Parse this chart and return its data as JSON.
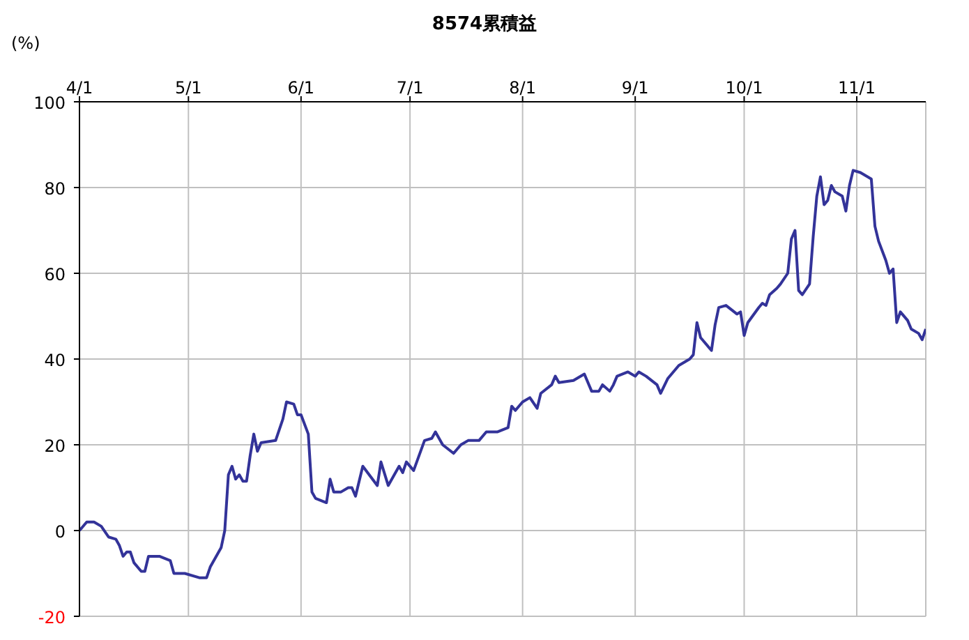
{
  "chart_data": {
    "type": "line",
    "title": "8574累積益",
    "ylabel": "(%)",
    "x": [
      "--04-01",
      "--04-03",
      "--04-05",
      "--04-07",
      "--04-09",
      "--04-11",
      "--04-12",
      "--04-13",
      "--04-14",
      "--04-15",
      "--04-16",
      "--04-18",
      "--04-19",
      "--04-20",
      "--04-23",
      "--04-26",
      "--04-27",
      "--04-30",
      "--05-04",
      "--05-06",
      "--05-07",
      "--05-10",
      "--05-11",
      "--05-12",
      "--05-13",
      "--05-14",
      "--05-15",
      "--05-16",
      "--05-17",
      "--05-18",
      "--05-19",
      "--05-20",
      "--05-21",
      "--05-25",
      "--05-27",
      "--05-28",
      "--05-30",
      "--05-31",
      "--06-01",
      "--06-03",
      "--06-04",
      "--06-05",
      "--06-08",
      "--06-09",
      "--06-10",
      "--06-12",
      "--06-14",
      "--06-15",
      "--06-16",
      "--06-18",
      "--06-22",
      "--06-23",
      "--06-25",
      "--06-28",
      "--06-29",
      "--06-30",
      "--07-02",
      "--07-05",
      "--07-07",
      "--07-08",
      "--07-10",
      "--07-13",
      "--07-15",
      "--07-17",
      "--07-20",
      "--07-22",
      "--07-25",
      "--07-28",
      "--07-29",
      "--07-30",
      "--08-01",
      "--08-03",
      "--08-05",
      "--08-06",
      "--08-09",
      "--08-10",
      "--08-11",
      "--08-15",
      "--08-18",
      "--08-20",
      "--08-22",
      "--08-23",
      "--08-25",
      "--08-26",
      "--08-27",
      "--08-30",
      "--09-01",
      "--09-02",
      "--09-04",
      "--09-07",
      "--09-08",
      "--09-10",
      "--09-13",
      "--09-16",
      "--09-17",
      "--09-18",
      "--09-19",
      "--09-22",
      "--09-23",
      "--09-24",
      "--09-26",
      "--09-29",
      "--09-30",
      "--10-01",
      "--10-02",
      "--10-05",
      "--10-06",
      "--10-07",
      "--10-08",
      "--10-10",
      "--10-11",
      "--10-13",
      "--10-14",
      "--10-15",
      "--10-16",
      "--10-17",
      "--10-19",
      "--10-20",
      "--10-21",
      "--10-22",
      "--10-23",
      "--10-24",
      "--10-25",
      "--10-26",
      "--10-28",
      "--10-29",
      "--10-30",
      "--10-31",
      "--11-02",
      "--11-05",
      "--11-06",
      "--11-07",
      "--11-09",
      "--11-10",
      "--11-11",
      "--11-12",
      "--11-13",
      "--11-15",
      "--11-16",
      "--11-18",
      "--11-19",
      "--11-20"
    ],
    "series": [
      {
        "color": "#333399",
        "values": [
          0,
          2,
          2,
          1,
          -1.5,
          -2,
          -3.5,
          -6,
          -5,
          -5,
          -7.5,
          -9.5,
          -9.5,
          -6,
          -6,
          -7,
          -10,
          -10,
          -11,
          -11,
          -8.5,
          -4,
          0,
          13,
          15,
          12,
          13,
          11.5,
          11.5,
          17.5,
          22.5,
          18.5,
          20.5,
          21,
          26,
          30,
          29.5,
          27,
          27,
          22.5,
          9,
          7.5,
          6.5,
          12,
          9,
          9,
          10,
          10,
          8,
          15,
          10.5,
          16,
          10.5,
          15,
          13.5,
          16,
          14,
          21,
          21.5,
          23,
          20,
          18,
          20,
          21,
          21,
          23,
          23,
          24,
          29,
          28,
          30,
          31,
          28.5,
          32,
          34,
          36,
          34.5,
          35,
          36.5,
          32.5,
          32.5,
          34,
          32.5,
          34,
          36,
          37,
          36,
          37,
          36,
          34,
          32,
          35.5,
          38.5,
          40,
          41,
          48.5,
          45,
          42,
          48,
          52,
          52.5,
          50.5,
          51,
          45.5,
          48.5,
          52,
          53,
          52.5,
          55,
          56.5,
          57.5,
          60,
          68,
          70,
          56,
          55,
          57.5,
          68.5,
          78,
          82.5,
          76,
          77,
          80.5,
          79,
          78,
          74.5,
          80.5,
          84,
          83.5,
          82,
          71,
          67.5,
          63,
          60,
          61,
          48.5,
          51,
          49,
          47,
          46,
          44.5,
          47
        ]
      }
    ],
    "xlim": [
      "--04-01",
      "--11-20"
    ],
    "xticks": [
      {
        "value": "--04-01",
        "label": "4/1"
      },
      {
        "value": "--05-01",
        "label": "5/1"
      },
      {
        "value": "--06-01",
        "label": "6/1"
      },
      {
        "value": "--07-01",
        "label": "7/1"
      },
      {
        "value": "--08-01",
        "label": "8/1"
      },
      {
        "value": "--09-01",
        "label": "9/1"
      },
      {
        "value": "--10-01",
        "label": "10/1"
      },
      {
        "value": "--11-01",
        "label": "11/1"
      }
    ],
    "ylim": [
      -20,
      100
    ],
    "yticks": [
      -20,
      0,
      20,
      40,
      60,
      80,
      100
    ],
    "grid": true,
    "marker": "none",
    "line_style": "solid",
    "legend": false
  }
}
